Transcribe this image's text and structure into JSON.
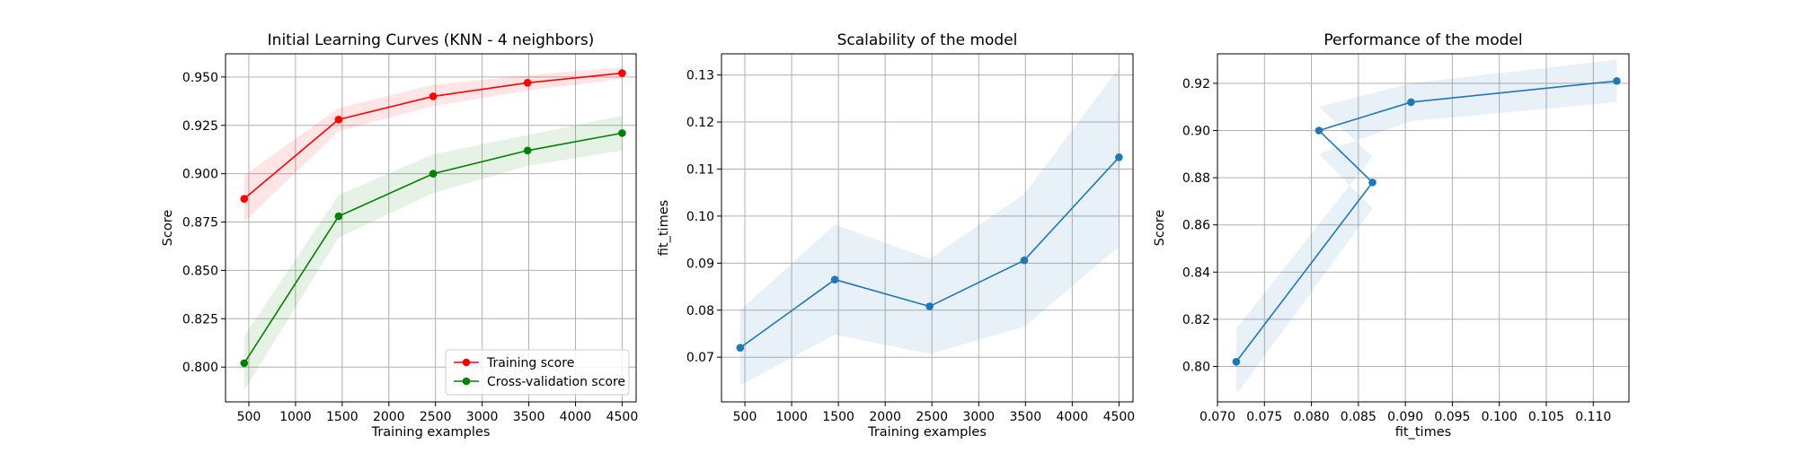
{
  "chart_data": [
    {
      "type": "line",
      "title": "Initial Learning Curves (KNN - 4 neighbors)",
      "xlabel": "Training examples",
      "ylabel": "Score",
      "xlim": [
        250,
        4650
      ],
      "ylim": [
        0.782,
        0.962
      ],
      "xticks": [
        500,
        1000,
        1500,
        2000,
        2500,
        3000,
        3500,
        4000,
        4500
      ],
      "xtick_labels": [
        "500",
        "1000",
        "1500",
        "2000",
        "2500",
        "3000",
        "3500",
        "4000",
        "4500"
      ],
      "yticks": [
        0.8,
        0.825,
        0.85,
        0.875,
        0.9,
        0.925,
        0.95
      ],
      "ytick_labels": [
        "0.800",
        "0.825",
        "0.850",
        "0.875",
        "0.900",
        "0.925",
        "0.950"
      ],
      "grid": true,
      "legend_position": "lower-right",
      "x": [
        450,
        1462,
        2475,
        3487,
        4500
      ],
      "series": [
        {
          "name": "Training score",
          "color": "#ff0000",
          "values": [
            0.887,
            0.928,
            0.94,
            0.947,
            0.952
          ],
          "band_lower": [
            0.875,
            0.922,
            0.935,
            0.943,
            0.949
          ],
          "band_upper": [
            0.899,
            0.934,
            0.946,
            0.951,
            0.955
          ]
        },
        {
          "name": "Cross-validation score",
          "color": "#008000",
          "values": [
            0.802,
            0.878,
            0.9,
            0.912,
            0.921
          ],
          "band_lower": [
            0.788,
            0.867,
            0.89,
            0.904,
            0.912
          ],
          "band_upper": [
            0.816,
            0.889,
            0.91,
            0.92,
            0.93
          ]
        }
      ]
    },
    {
      "type": "line",
      "title": "Scalability of the model",
      "xlabel": "Training examples",
      "ylabel": "fit_times",
      "xlim": [
        250,
        4650
      ],
      "ylim": [
        0.0605,
        0.1345
      ],
      "xticks": [
        500,
        1000,
        1500,
        2000,
        2500,
        3000,
        3500,
        4000,
        4500
      ],
      "xtick_labels": [
        "500",
        "1000",
        "1500",
        "2000",
        "2500",
        "3000",
        "3500",
        "4000",
        "4500"
      ],
      "yticks": [
        0.07,
        0.08,
        0.09,
        0.1,
        0.11,
        0.12,
        0.13
      ],
      "ytick_labels": [
        "0.07",
        "0.08",
        "0.09",
        "0.10",
        "0.11",
        "0.12",
        "0.13"
      ],
      "grid": true,
      "x": [
        450,
        1462,
        2475,
        3487,
        4500
      ],
      "series": [
        {
          "color": "#1f77b4",
          "band_color": "#1f77b4",
          "values": [
            0.072,
            0.0865,
            0.0808,
            0.0906,
            0.1125
          ],
          "band_lower": [
            0.064,
            0.0748,
            0.0707,
            0.0765,
            0.0935
          ],
          "band_upper": [
            0.08,
            0.0982,
            0.0909,
            0.1047,
            0.1315
          ]
        }
      ]
    },
    {
      "type": "line",
      "title": "Performance of the model",
      "xlabel": "fit_times",
      "ylabel": "Score",
      "xlim": [
        0.07,
        0.1138
      ],
      "ylim": [
        0.785,
        0.9325
      ],
      "xticks": [
        0.07,
        0.075,
        0.08,
        0.085,
        0.09,
        0.095,
        0.1,
        0.105,
        0.11
      ],
      "xtick_labels": [
        "0.070",
        "0.075",
        "0.080",
        "0.085",
        "0.090",
        "0.095",
        "0.100",
        "0.105",
        "0.110"
      ],
      "yticks": [
        0.8,
        0.82,
        0.84,
        0.86,
        0.88,
        0.9,
        0.92
      ],
      "ytick_labels": [
        "0.80",
        "0.82",
        "0.84",
        "0.86",
        "0.88",
        "0.90",
        "0.92"
      ],
      "grid": true,
      "series": [
        {
          "color": "#1f77b4",
          "band_color": "#1f77b4",
          "x": [
            0.072,
            0.0865,
            0.0808,
            0.0906,
            0.1125
          ],
          "values": [
            0.802,
            0.878,
            0.9,
            0.912,
            0.921
          ],
          "band_lower": [
            0.788,
            0.867,
            0.89,
            0.904,
            0.912
          ],
          "band_upper": [
            0.816,
            0.889,
            0.91,
            0.92,
            0.93
          ]
        }
      ]
    }
  ]
}
